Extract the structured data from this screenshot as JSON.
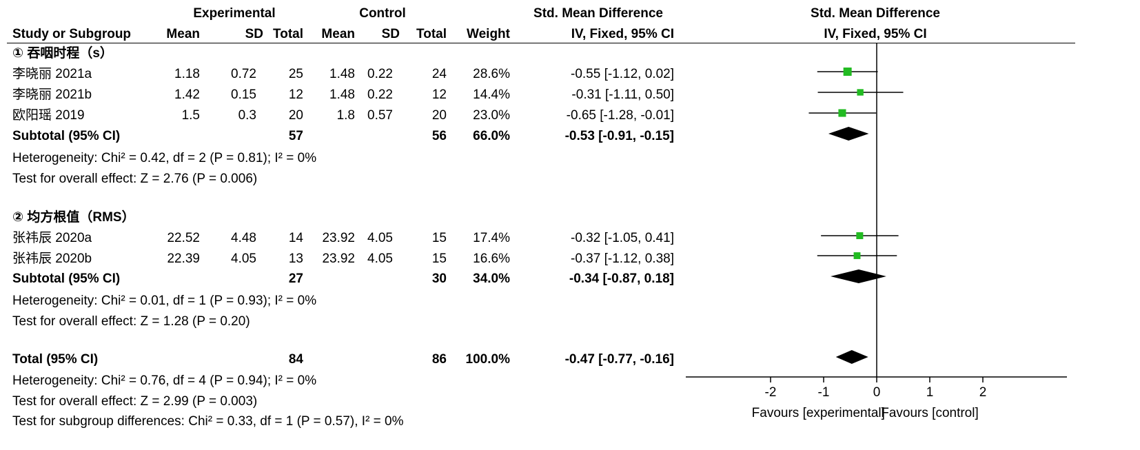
{
  "header": {
    "group1": "Experimental",
    "group2": "Control",
    "effect_title": "Std. Mean Difference",
    "plot_title": "Std. Mean Difference",
    "plot_method": "IV, Fixed, 95% CI",
    "columns": [
      "Study or Subgroup",
      "Mean",
      "SD",
      "Total",
      "Mean",
      "SD",
      "Total",
      "Weight",
      "IV, Fixed, 95% CI"
    ]
  },
  "subgroups": [
    {
      "title": "① 吞咽时程（s）",
      "studies": [
        {
          "name": "李晓丽 2021a",
          "e_mean": "1.18",
          "e_sd": "0.72",
          "e_total": "25",
          "c_mean": "1.48",
          "c_sd": "0.22",
          "c_total": "24",
          "weight": "28.6%",
          "ci": "-0.55 [-1.12, 0.02]"
        },
        {
          "name": "李晓丽 2021b",
          "e_mean": "1.42",
          "e_sd": "0.15",
          "e_total": "12",
          "c_mean": "1.48",
          "c_sd": "0.22",
          "c_total": "12",
          "weight": "14.4%",
          "ci": "-0.31 [-1.11, 0.50]"
        },
        {
          "name": "欧阳瑶 2019",
          "e_mean": "1.5",
          "e_sd": "0.3",
          "e_total": "20",
          "c_mean": "1.8",
          "c_sd": "0.57",
          "c_total": "20",
          "weight": "23.0%",
          "ci": "-0.65 [-1.28, -0.01]"
        }
      ],
      "subtotal": {
        "label": "Subtotal (95% CI)",
        "e_total": "57",
        "c_total": "56",
        "weight": "66.0%",
        "ci": "-0.53 [-0.91, -0.15]"
      },
      "heterogeneity": "Heterogeneity: Chi² = 0.42, df = 2 (P = 0.81); I² = 0%",
      "overall": "Test for overall effect: Z = 2.76 (P = 0.006)"
    },
    {
      "title": "② 均方根值（RMS）",
      "studies": [
        {
          "name": "张祎辰 2020a",
          "e_mean": "22.52",
          "e_sd": "4.48",
          "e_total": "14",
          "c_mean": "23.92",
          "c_sd": "4.05",
          "c_total": "15",
          "weight": "17.4%",
          "ci": "-0.32 [-1.05, 0.41]"
        },
        {
          "name": "张祎辰 2020b",
          "e_mean": "22.39",
          "e_sd": "4.05",
          "e_total": "13",
          "c_mean": "23.92",
          "c_sd": "4.05",
          "c_total": "15",
          "weight": "16.6%",
          "ci": "-0.37 [-1.12, 0.38]"
        }
      ],
      "subtotal": {
        "label": "Subtotal (95% CI)",
        "e_total": "27",
        "c_total": "30",
        "weight": "34.0%",
        "ci": "-0.34 [-0.87, 0.18]"
      },
      "heterogeneity": "Heterogeneity: Chi² = 0.01, df = 1 (P = 0.93); I² = 0%",
      "overall": "Test for overall effect: Z = 1.28 (P = 0.20)"
    }
  ],
  "total": {
    "label": "Total (95% CI)",
    "e_total": "84",
    "c_total": "86",
    "weight": "100.0%",
    "ci": "-0.47 [-0.77, -0.16]"
  },
  "total_heterogeneity": "Heterogeneity: Chi² = 0.76, df = 4 (P = 0.94); I² = 0%",
  "total_overall": "Test for overall effect: Z = 2.99 (P = 0.003)",
  "subgroup_diff": "Test for subgroup differences: Chi² = 0.33, df = 1 (P = 0.57), I² = 0%",
  "colors": {
    "marker": "#22bb22",
    "diamond": "#000000",
    "line": "#000000"
  },
  "chart_data": {
    "type": "forest",
    "x_ticks": [
      "-2",
      "-1",
      "0",
      "1",
      "2"
    ],
    "xlim": [
      -2,
      2
    ],
    "xlabel_left": "Favours [experimental]",
    "xlabel_right": "Favours [control]",
    "studies": [
      {
        "name": "李晓丽 2021a",
        "est": -0.55,
        "lo": -1.12,
        "hi": 0.02,
        "weight": 28.6
      },
      {
        "name": "李晓丽 2021b",
        "est": -0.31,
        "lo": -1.11,
        "hi": 0.5,
        "weight": 14.4
      },
      {
        "name": "欧阳瑶 2019",
        "est": -0.65,
        "lo": -1.28,
        "hi": -0.01,
        "weight": 23.0
      },
      {
        "name": "张祎辰 2020a",
        "est": -0.32,
        "lo": -1.05,
        "hi": 0.41,
        "weight": 17.4
      },
      {
        "name": "张祎辰 2020b",
        "est": -0.37,
        "lo": -1.12,
        "hi": 0.38,
        "weight": 16.6
      }
    ],
    "diamonds": [
      {
        "name": "Subtotal 1",
        "est": -0.53,
        "lo": -0.91,
        "hi": -0.15
      },
      {
        "name": "Subtotal 2",
        "est": -0.34,
        "lo": -0.87,
        "hi": 0.18
      },
      {
        "name": "Total",
        "est": -0.47,
        "lo": -0.77,
        "hi": -0.16
      }
    ]
  }
}
